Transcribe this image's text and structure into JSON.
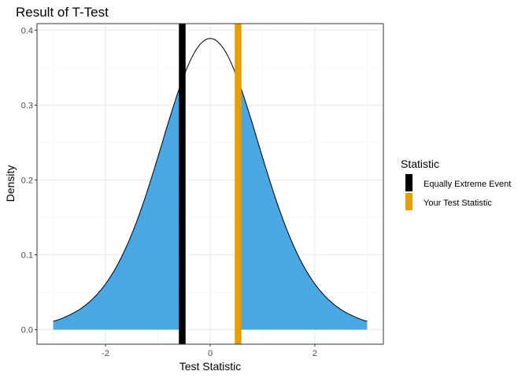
{
  "chart_data": {
    "type": "area",
    "title": "Result of T-Test",
    "xlabel": "Test Statistic",
    "ylabel": "Density",
    "xlim": [
      -3.31,
      3.31
    ],
    "ylim": [
      -0.0194,
      0.4088
    ],
    "x_ticks": [
      -2,
      0,
      2
    ],
    "x_tick_labels": [
      "-2",
      "0",
      "2"
    ],
    "y_ticks": [
      0,
      0.1,
      0.2,
      0.3,
      0.4
    ],
    "y_tick_labels": [
      "0.0",
      "0.1",
      "0.2",
      "0.3",
      "0.4"
    ],
    "grid": true,
    "curve": {
      "x": [
        -3,
        -2.75,
        -2.5,
        -2.25,
        -2,
        -1.75,
        -1.5,
        -1.25,
        -1,
        -0.75,
        -0.5,
        -0.25,
        0,
        0.25,
        0.5,
        0.75,
        1,
        1.25,
        1.5,
        1.75,
        2,
        2.25,
        2.5,
        2.75,
        3
      ],
      "y": [
        0.0114,
        0.0176,
        0.0269,
        0.0409,
        0.0611,
        0.0895,
        0.1275,
        0.1751,
        0.2304,
        0.288,
        0.3397,
        0.376,
        0.3891,
        0.376,
        0.3397,
        0.288,
        0.2304,
        0.1751,
        0.1275,
        0.0895,
        0.0611,
        0.0409,
        0.0269,
        0.0176,
        0.0114
      ]
    },
    "shaded_fill": "#4BA7E4",
    "shaded_regions": [
      [
        -3,
        -0.534
      ],
      [
        0.534,
        3
      ]
    ],
    "vlines": [
      {
        "name": "Equally Extreme Event",
        "x": -0.534,
        "color": "#000000"
      },
      {
        "name": "Your Test Statistic",
        "x": 0.534,
        "color": "#E69F00"
      }
    ],
    "legend": {
      "title": "Statistic",
      "placement": "right"
    }
  }
}
